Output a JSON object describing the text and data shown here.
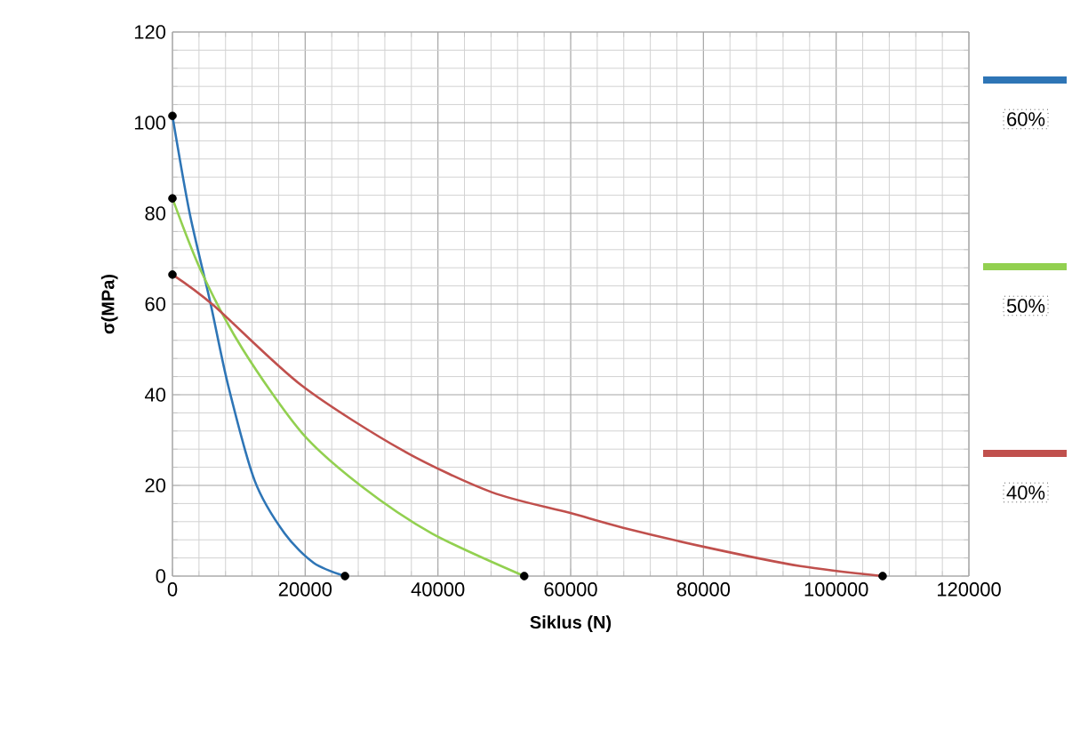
{
  "chart_data": {
    "type": "line",
    "xlabel": "Siklus (N)",
    "ylabel": "σ(MPa)",
    "xlim": [
      0,
      120000
    ],
    "ylim": [
      0,
      120
    ],
    "xticks": [
      0,
      20000,
      40000,
      60000,
      80000,
      100000,
      120000
    ],
    "yticks": [
      0,
      20,
      40,
      60,
      80,
      100,
      120
    ],
    "grid": true,
    "legend": "right",
    "marker": "none",
    "line_style": "solid",
    "series": [
      {
        "name": "60%",
        "color": "#2e75b6",
        "x": [
          0,
          2600,
          5700,
          8400,
          12400,
          16900,
          21300,
          26000
        ],
        "values": [
          101.5,
          80,
          60.4,
          42,
          21,
          9.4,
          2.9,
          0
        ]
      },
      {
        "name": "50%",
        "color": "#92d050",
        "x": [
          0,
          4400,
          10600,
          19500,
          28400,
          39100,
          53000
        ],
        "values": [
          83.3,
          67,
          50,
          31.6,
          19.9,
          9.4,
          0
        ]
      },
      {
        "name": "40%",
        "color": "#c0504d",
        "x": [
          0,
          6200,
          19500,
          34700,
          48100,
          59700,
          67800,
          81200,
          94600,
          107000
        ],
        "values": [
          66.5,
          59.7,
          42,
          27.7,
          18.5,
          14,
          10.7,
          6.1,
          2.2,
          0
        ]
      },
      {
        "type": "scatter",
        "marker": "circle",
        "color": "#000000",
        "x": [
          0,
          0,
          0,
          26000,
          53000,
          107000
        ],
        "values": [
          101.5,
          83.3,
          66.5,
          0,
          0,
          0
        ]
      }
    ]
  }
}
